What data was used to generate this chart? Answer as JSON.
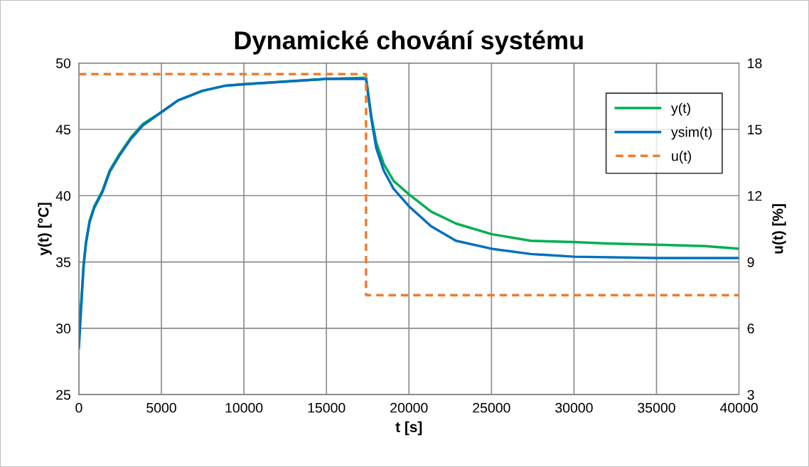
{
  "chart_data": {
    "type": "line",
    "title": "Dynamické chování systému",
    "xlabel": "t [s]",
    "ylabel": "y(t) [°C]",
    "y2label": "u(t) [%]",
    "xlim": [
      0,
      40000
    ],
    "xticks": [
      0,
      5000,
      10000,
      15000,
      20000,
      25000,
      30000,
      35000,
      40000
    ],
    "ylim": [
      25,
      50
    ],
    "yticks": [
      25,
      30,
      35,
      40,
      45,
      50
    ],
    "y2lim": [
      3,
      18
    ],
    "y2ticks": [
      3,
      6,
      9,
      12,
      15,
      18
    ],
    "grid": true,
    "legend": "top right",
    "marker": "none",
    "series": [
      {
        "name": "y(t)",
        "color": "#00b050",
        "line_style": "solid",
        "x": [
          0,
          144,
          287,
          430,
          647,
          934,
          1437,
          1868,
          2443,
          3161,
          3879,
          5000,
          6034,
          7471,
          8908,
          10000,
          12500,
          15000,
          17400,
          17720,
          18020,
          18470,
          19080,
          20000,
          21340,
          22850,
          25000,
          27390,
          30000,
          31920,
          35000,
          37960,
          40000
        ],
        "values": [
          30.0,
          32.0,
          34.8,
          36.5,
          38.1,
          39.2,
          40.4,
          41.9,
          43.1,
          44.4,
          45.4,
          46.3,
          47.2,
          47.9,
          48.3,
          48.4,
          48.6,
          48.8,
          48.9,
          46.0,
          44.0,
          42.4,
          41.1,
          40.1,
          38.8,
          37.9,
          37.1,
          36.6,
          36.5,
          36.4,
          36.3,
          36.2,
          36.0
        ]
      },
      {
        "name": "ysim(t)",
        "color": "#0070c0",
        "line_style": "solid",
        "x": [
          0,
          144,
          287,
          430,
          647,
          934,
          1437,
          1868,
          2443,
          3161,
          3879,
          5000,
          6034,
          7471,
          8908,
          10000,
          12500,
          15000,
          17400,
          17720,
          18020,
          18470,
          19080,
          20000,
          21340,
          22850,
          25000,
          27390,
          30000,
          35000,
          40000
        ],
        "values": [
          28.5,
          31.7,
          34.7,
          36.4,
          38.0,
          39.1,
          40.3,
          41.8,
          43.0,
          44.3,
          45.3,
          46.3,
          47.2,
          47.9,
          48.3,
          48.4,
          48.6,
          48.8,
          48.8,
          45.8,
          43.6,
          41.9,
          40.5,
          39.2,
          37.7,
          36.6,
          36.0,
          35.6,
          35.4,
          35.3,
          35.3
        ]
      },
      {
        "name": "u(t)",
        "color": "#ed7d31",
        "line_style": "dashed",
        "axis": "y2",
        "x": [
          0,
          17400,
          17400,
          40000
        ],
        "values": [
          17.5,
          17.5,
          7.5,
          7.5
        ]
      }
    ]
  }
}
